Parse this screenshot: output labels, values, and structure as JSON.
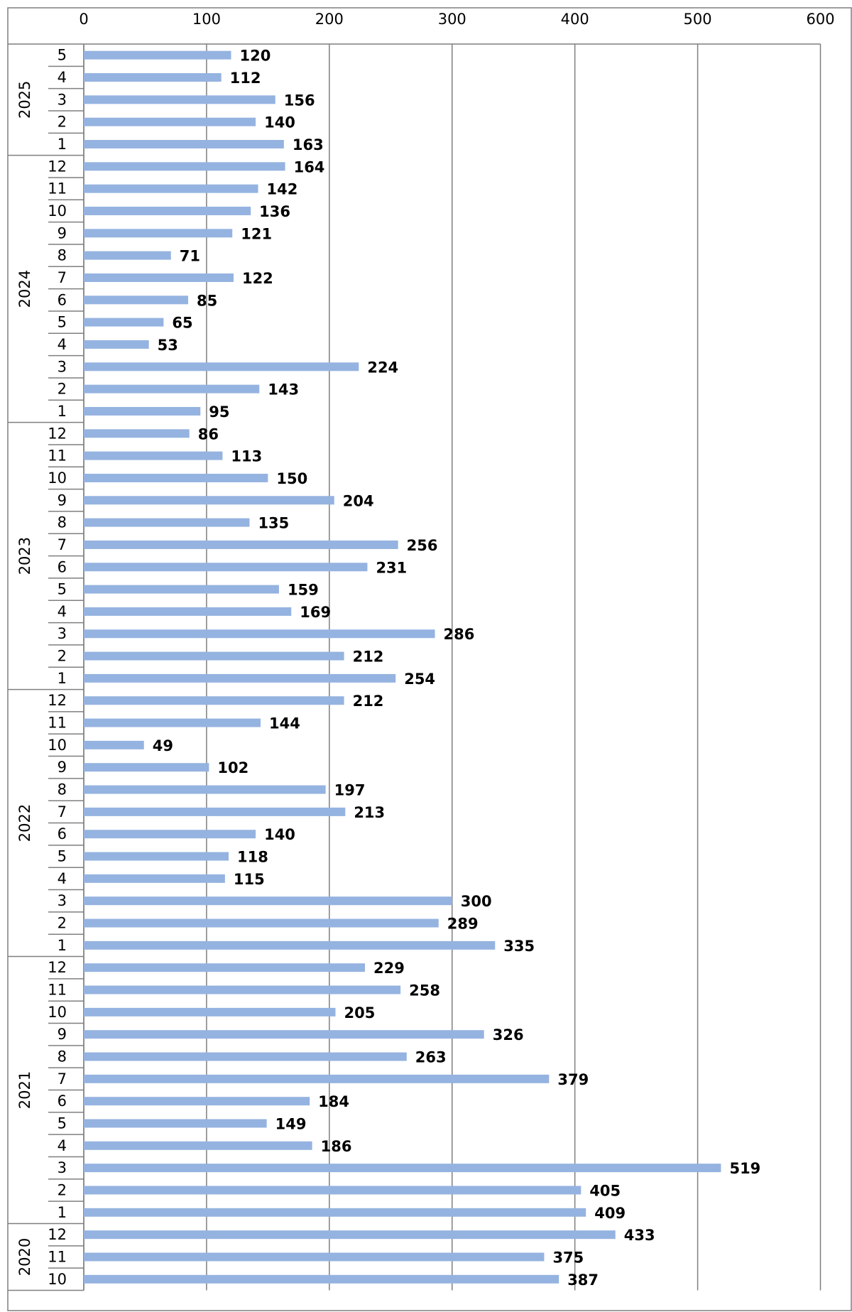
{
  "chart_data": {
    "type": "bar",
    "orientation": "horizontal",
    "title": "",
    "xlabel": "",
    "ylabel": "",
    "xlim": [
      0,
      600
    ],
    "x_ticks": [
      0,
      100,
      200,
      300,
      400,
      500,
      600
    ],
    "grid": true,
    "legend": "none",
    "bar_color": "#95B3E0",
    "grid_color": "#7F7F7F",
    "groups": [
      {
        "label": "2025",
        "categories": [
          "5",
          "4",
          "3",
          "2",
          "1"
        ],
        "values": [
          120,
          112,
          156,
          140,
          163
        ]
      },
      {
        "label": "2024",
        "categories": [
          "12",
          "11",
          "10",
          "9",
          "8",
          "7",
          "6",
          "5",
          "4",
          "3",
          "2",
          "1"
        ],
        "values": [
          164,
          142,
          136,
          121,
          71,
          122,
          85,
          65,
          53,
          224,
          143,
          95
        ]
      },
      {
        "label": "2023",
        "categories": [
          "12",
          "11",
          "10",
          "9",
          "8",
          "7",
          "6",
          "5",
          "4",
          "3",
          "2",
          "1"
        ],
        "values": [
          86,
          113,
          150,
          204,
          135,
          256,
          231,
          159,
          169,
          286,
          212,
          254
        ]
      },
      {
        "label": "2022",
        "categories": [
          "12",
          "11",
          "10",
          "9",
          "8",
          "7",
          "6",
          "5",
          "4",
          "3",
          "2",
          "1"
        ],
        "values": [
          212,
          144,
          49,
          102,
          197,
          213,
          140,
          118,
          115,
          300,
          289,
          335
        ]
      },
      {
        "label": "2021",
        "categories": [
          "12",
          "11",
          "10",
          "9",
          "8",
          "7",
          "6",
          "5",
          "4",
          "3",
          "2",
          "1"
        ],
        "values": [
          229,
          258,
          205,
          326,
          263,
          379,
          184,
          149,
          186,
          519,
          405,
          409
        ]
      },
      {
        "label": "2020",
        "categories": [
          "12",
          "11",
          "10"
        ],
        "values": [
          433,
          375,
          387
        ]
      }
    ]
  }
}
